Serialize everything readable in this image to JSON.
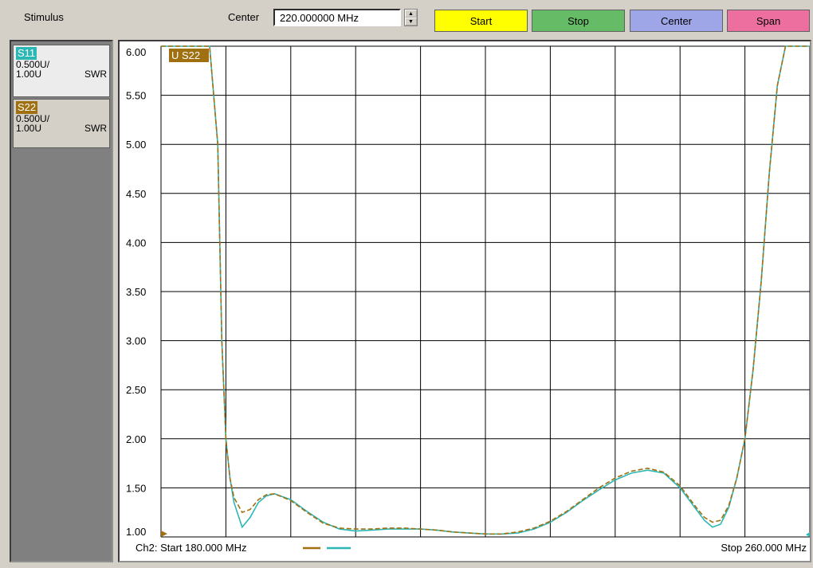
{
  "toolbar": {
    "stimulus_label": "Stimulus",
    "center_label": "Center",
    "center_value": "220.000000 MHz",
    "buttons": {
      "start": "Start",
      "stop": "Stop",
      "center": "Center",
      "span": "Span"
    }
  },
  "traces": [
    {
      "name": "S11",
      "scale": "0.500U/",
      "ref": "1.00U",
      "format": "SWR",
      "color": "#2bb7b5"
    },
    {
      "name": "S22",
      "scale": "0.500U/",
      "ref": "1.00U",
      "format": "SWR",
      "color": "#a07010"
    }
  ],
  "plot": {
    "active_marker_label": "U S22",
    "footer_left": "Ch2: Start  180.000 MHz",
    "footer_right": "Stop  260.000 MHz"
  },
  "chart_data": {
    "type": "line",
    "xlim": [
      180,
      260
    ],
    "ylim": [
      1.0,
      6.0
    ],
    "yticks": [
      "6.00",
      "5.50",
      "5.00",
      "4.50",
      "4.00",
      "3.50",
      "3.00",
      "2.50",
      "2.00",
      "1.50",
      "1.00"
    ],
    "grid": true,
    "series": [
      {
        "name": "S11",
        "color": "#2bb7b5",
        "x": [
          180,
          186,
          187,
          187.5,
          188,
          188.5,
          189,
          190,
          191,
          192,
          193,
          194,
          196,
          198,
          200,
          202,
          204,
          206,
          208,
          210,
          212,
          214,
          216,
          218,
          220,
          222,
          224,
          226,
          228,
          230,
          232,
          234,
          236,
          238,
          240,
          242,
          244,
          246,
          247,
          248,
          249,
          250,
          251,
          252,
          253,
          254,
          255,
          256,
          257,
          258,
          259,
          260
        ],
        "y": [
          6.0,
          6.0,
          5.0,
          3.0,
          2.0,
          1.6,
          1.35,
          1.1,
          1.2,
          1.35,
          1.42,
          1.44,
          1.38,
          1.26,
          1.15,
          1.08,
          1.06,
          1.07,
          1.08,
          1.08,
          1.08,
          1.07,
          1.05,
          1.04,
          1.03,
          1.03,
          1.04,
          1.08,
          1.15,
          1.25,
          1.37,
          1.48,
          1.58,
          1.65,
          1.68,
          1.65,
          1.5,
          1.28,
          1.17,
          1.1,
          1.13,
          1.3,
          1.6,
          2.0,
          2.7,
          3.6,
          4.7,
          5.6,
          6.0,
          6.0,
          6.0,
          6.0
        ]
      },
      {
        "name": "S22",
        "color": "#a07010",
        "x": [
          180,
          186,
          187,
          187.5,
          188,
          188.5,
          189,
          190,
          191,
          192,
          193,
          194,
          196,
          198,
          200,
          202,
          204,
          206,
          208,
          210,
          212,
          214,
          216,
          218,
          220,
          222,
          224,
          226,
          228,
          230,
          232,
          234,
          236,
          238,
          240,
          242,
          244,
          246,
          247,
          248,
          249,
          250,
          251,
          252,
          253,
          254,
          255,
          256,
          257,
          258,
          259,
          260
        ],
        "y": [
          6.0,
          6.0,
          5.0,
          3.0,
          2.0,
          1.6,
          1.4,
          1.25,
          1.28,
          1.38,
          1.43,
          1.44,
          1.37,
          1.25,
          1.14,
          1.09,
          1.08,
          1.08,
          1.09,
          1.09,
          1.08,
          1.07,
          1.05,
          1.04,
          1.03,
          1.03,
          1.05,
          1.09,
          1.16,
          1.26,
          1.38,
          1.5,
          1.6,
          1.67,
          1.7,
          1.66,
          1.52,
          1.3,
          1.2,
          1.15,
          1.17,
          1.32,
          1.6,
          2.0,
          2.7,
          3.6,
          4.7,
          5.6,
          6.0,
          6.0,
          6.0,
          6.0
        ]
      }
    ]
  }
}
